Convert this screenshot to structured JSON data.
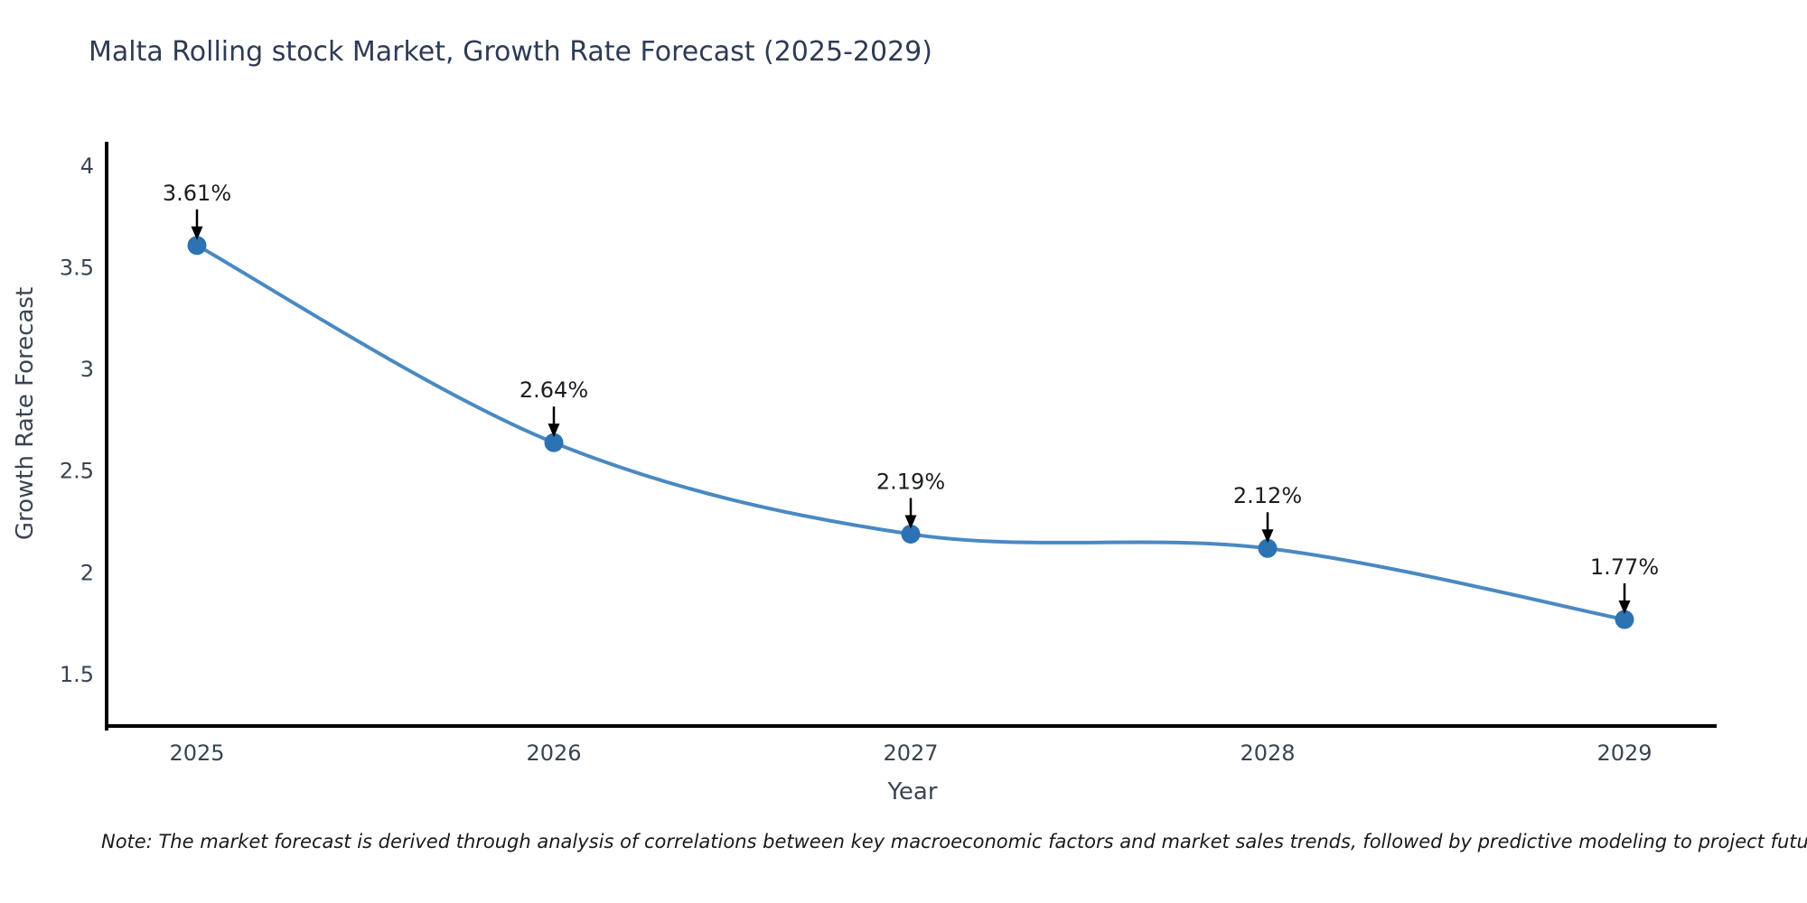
{
  "page": {
    "background": "#ffffff"
  },
  "chart": {
    "title": "Malta Rolling stock Market, Growth Rate Forecast (2025-2029)",
    "xlabel": "Year",
    "ylabel": "Growth Rate Forecast",
    "note": "Note: The market forecast is derived through analysis of correlations between key macroeconomic factors and market sales trends, followed by predictive modeling to project future sales",
    "colors": {
      "line": "#4a89c2",
      "marker": "#2d72b2",
      "axis": "#000000",
      "title_text": "#2e3b54",
      "tick_text": "#3a4552",
      "annotation_text": "#1a1d21",
      "arrow": "#000000"
    }
  },
  "chart_data": {
    "type": "line",
    "title": "Malta Rolling stock Market, Growth Rate Forecast (2025-2029)",
    "xlabel": "Year",
    "ylabel": "Growth Rate Forecast",
    "x": [
      2025,
      2026,
      2027,
      2028,
      2029
    ],
    "values": [
      3.61,
      2.64,
      2.19,
      2.12,
      1.77
    ],
    "point_labels": [
      "3.61%",
      "2.64%",
      "2.19%",
      "2.12%",
      "1.77%"
    ],
    "xtick_labels": [
      "2025",
      "2026",
      "2027",
      "2028",
      "2029"
    ],
    "ytick_values": [
      1.5,
      2,
      2.5,
      3,
      3.5,
      4
    ],
    "ytick_labels": [
      "1.5",
      "2",
      "2.5",
      "3",
      "3.5",
      "4"
    ],
    "ylim": [
      1.246,
      4.12
    ],
    "grid": false,
    "legend": null,
    "line_shape": "spline",
    "markers": true,
    "annotations_arrows": true
  }
}
